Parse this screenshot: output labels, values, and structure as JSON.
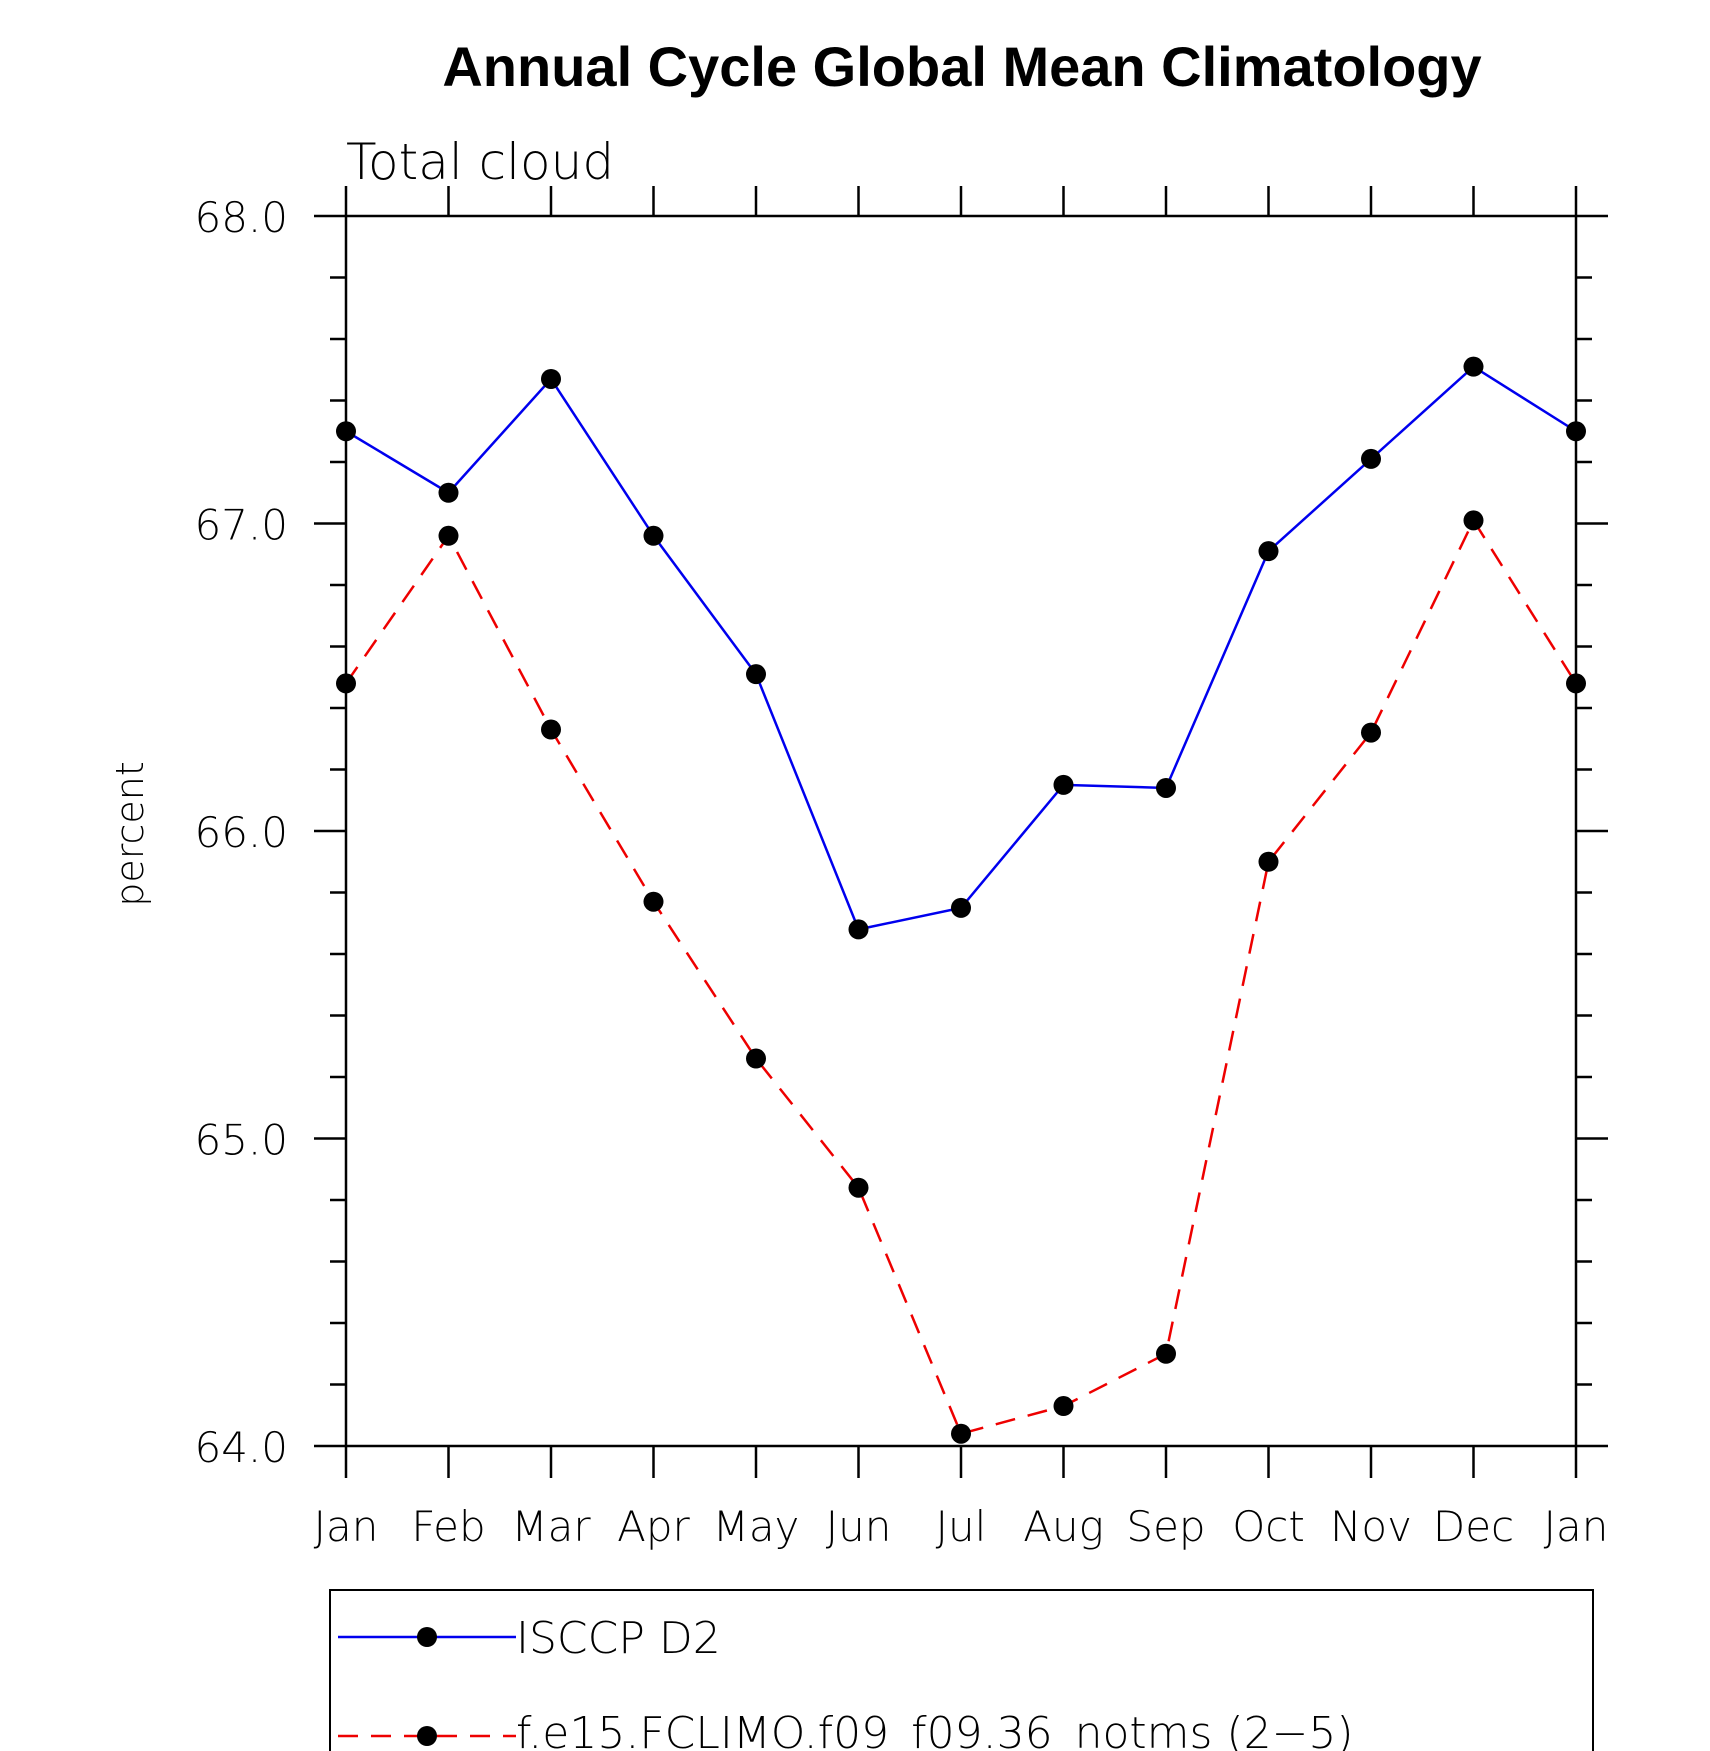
{
  "chart_data": {
    "type": "line",
    "title": "Annual Cycle Global Mean Climatology",
    "subtitle": "Total cloud",
    "xlabel": "",
    "ylabel": "percent",
    "categories": [
      "Jan",
      "Feb",
      "Mar",
      "Apr",
      "May",
      "Jun",
      "Jul",
      "Aug",
      "Sep",
      "Oct",
      "Nov",
      "Dec",
      "Jan"
    ],
    "ylim": [
      64.0,
      68.0
    ],
    "yticks": [
      "64.0",
      "65.0",
      "66.0",
      "67.0",
      "68.0"
    ],
    "grid": false,
    "legend_position": "bottom",
    "series": [
      {
        "name": "ISCCP D2",
        "color": "#0000ee",
        "dash": "solid",
        "values": [
          67.3,
          67.1,
          67.47,
          66.96,
          66.51,
          65.68,
          65.75,
          66.15,
          66.14,
          66.91,
          67.21,
          67.51,
          67.3
        ]
      },
      {
        "name": "f.e15.FCLIMO.f09_f09.36_notms (2−5)",
        "color": "#ee0000",
        "dash": "dashed",
        "values": [
          66.48,
          66.96,
          66.33,
          65.77,
          65.26,
          64.84,
          64.04,
          64.13,
          64.3,
          65.9,
          66.32,
          67.01,
          66.48
        ]
      }
    ]
  }
}
